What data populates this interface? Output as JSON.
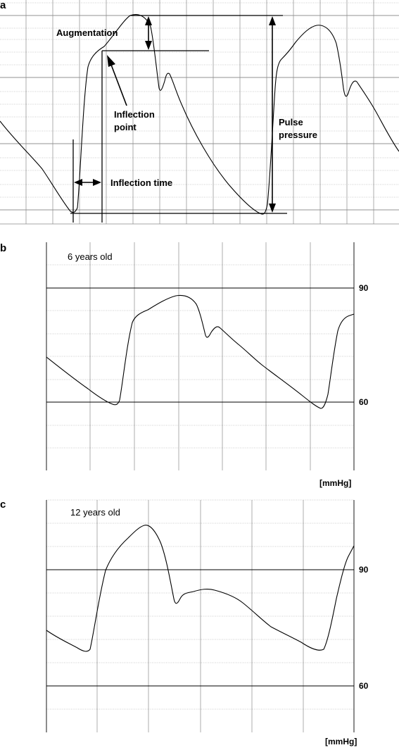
{
  "panels": [
    {
      "id": "a",
      "label": "a",
      "annotations": {
        "augmentation": "Augmentation",
        "inflection_point_line1": "Inflection",
        "inflection_point_line2": "point",
        "inflection_time": "Inflection time",
        "pulse_pressure_line1": "Pulse",
        "pulse_pressure_line2": "pressure"
      }
    },
    {
      "id": "b",
      "label": "b",
      "age": "6 years old",
      "ticks": [
        "90",
        "60"
      ],
      "unit": "[mmHg]"
    },
    {
      "id": "c",
      "label": "c",
      "age": "12 years old",
      "ticks": [
        "90",
        "60"
      ],
      "unit": "[mmHg]"
    }
  ]
}
